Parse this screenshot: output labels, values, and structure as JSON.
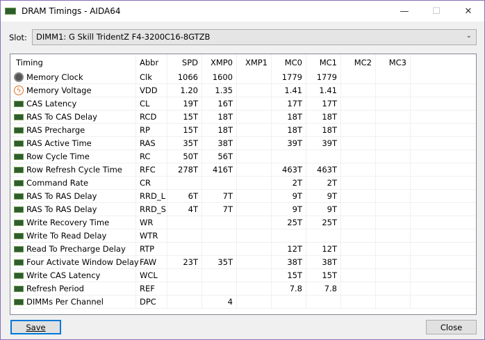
{
  "window": {
    "title": "DRAM Timings - AIDA64",
    "minimize": "—",
    "maximize": "☐",
    "close": "✕"
  },
  "slot": {
    "label": "Slot:",
    "value": "DIMM1: G Skill TridentZ F4-3200C16-8GTZB"
  },
  "columns": [
    "Timing",
    "Abbr",
    "SPD",
    "XMP0",
    "XMP1",
    "MC0",
    "MC1",
    "MC2",
    "MC3"
  ],
  "rows": [
    {
      "icon": "clock-icon",
      "name": "Memory Clock",
      "abbr": "Clk",
      "v": [
        "1066",
        "1600",
        "",
        "1779",
        "1779",
        "",
        ""
      ]
    },
    {
      "icon": "voltage-icon",
      "name": "Memory Voltage",
      "abbr": "VDD",
      "v": [
        "1.20",
        "1.35",
        "",
        "1.41",
        "1.41",
        "",
        ""
      ]
    },
    {
      "icon": "ram-icon",
      "name": "CAS Latency",
      "abbr": "CL",
      "v": [
        "19T",
        "16T",
        "",
        "17T",
        "17T",
        "",
        ""
      ]
    },
    {
      "icon": "ram-icon",
      "name": "RAS To CAS Delay",
      "abbr": "RCD",
      "v": [
        "15T",
        "18T",
        "",
        "18T",
        "18T",
        "",
        ""
      ]
    },
    {
      "icon": "ram-icon",
      "name": "RAS Precharge",
      "abbr": "RP",
      "v": [
        "15T",
        "18T",
        "",
        "18T",
        "18T",
        "",
        ""
      ]
    },
    {
      "icon": "ram-icon",
      "name": "RAS Active Time",
      "abbr": "RAS",
      "v": [
        "35T",
        "38T",
        "",
        "39T",
        "39T",
        "",
        ""
      ]
    },
    {
      "icon": "ram-icon",
      "name": "Row Cycle Time",
      "abbr": "RC",
      "v": [
        "50T",
        "56T",
        "",
        "",
        "",
        "",
        ""
      ]
    },
    {
      "icon": "ram-icon",
      "name": "Row Refresh Cycle Time",
      "abbr": "RFC",
      "v": [
        "278T",
        "416T",
        "",
        "463T",
        "463T",
        "",
        ""
      ]
    },
    {
      "icon": "ram-icon",
      "name": "Command Rate",
      "abbr": "CR",
      "v": [
        "",
        "",
        "",
        "2T",
        "2T",
        "",
        ""
      ]
    },
    {
      "icon": "ram-icon",
      "name": "RAS To RAS Delay",
      "abbr": "RRD_L",
      "v": [
        "6T",
        "7T",
        "",
        "9T",
        "9T",
        "",
        ""
      ]
    },
    {
      "icon": "ram-icon",
      "name": "RAS To RAS Delay",
      "abbr": "RRD_S",
      "v": [
        "4T",
        "7T",
        "",
        "9T",
        "9T",
        "",
        ""
      ]
    },
    {
      "icon": "ram-icon",
      "name": "Write Recovery Time",
      "abbr": "WR",
      "v": [
        "",
        "",
        "",
        "25T",
        "25T",
        "",
        ""
      ]
    },
    {
      "icon": "ram-icon",
      "name": "Write To Read Delay",
      "abbr": "WTR",
      "v": [
        "",
        "",
        "",
        "",
        "",
        "",
        ""
      ]
    },
    {
      "icon": "ram-icon",
      "name": "Read To Precharge Delay",
      "abbr": "RTP",
      "v": [
        "",
        "",
        "",
        "12T",
        "12T",
        "",
        ""
      ]
    },
    {
      "icon": "ram-icon",
      "name": "Four Activate Window Delay",
      "abbr": "FAW",
      "v": [
        "23T",
        "35T",
        "",
        "38T",
        "38T",
        "",
        ""
      ]
    },
    {
      "icon": "ram-icon",
      "name": "Write CAS Latency",
      "abbr": "WCL",
      "v": [
        "",
        "",
        "",
        "15T",
        "15T",
        "",
        ""
      ]
    },
    {
      "icon": "ram-icon",
      "name": "Refresh Period",
      "abbr": "REF",
      "v": [
        "",
        "",
        "",
        "7.8",
        "7.8",
        "",
        ""
      ]
    },
    {
      "icon": "ram-icon",
      "name": "DIMMs Per Channel",
      "abbr": "DPC",
      "v": [
        "",
        "4",
        "",
        "",
        "",
        "",
        ""
      ]
    }
  ],
  "buttons": {
    "save": "Save",
    "close": "Close"
  }
}
